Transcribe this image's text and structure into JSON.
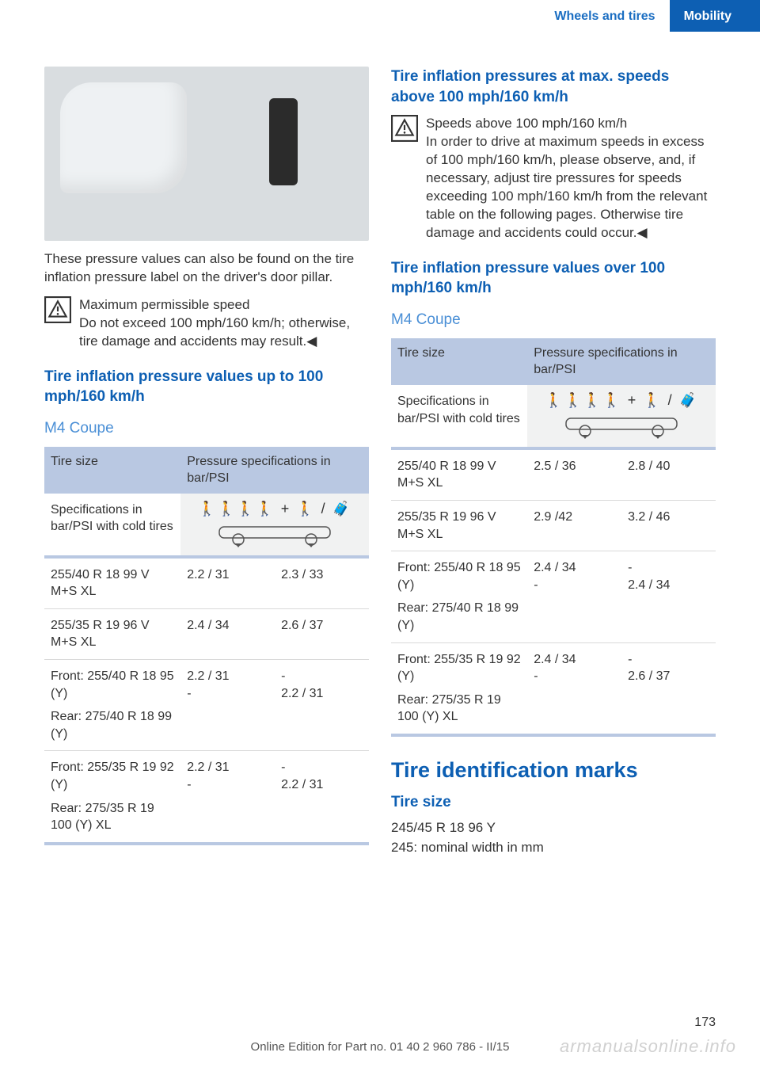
{
  "header": {
    "section": "Wheels and tires",
    "chapter": "Mobility"
  },
  "left": {
    "p1": "These pressure values can also be found on the tire inflation pressure label on the driver's door pillar.",
    "warn_title": "Maximum permissible speed",
    "warn_body": "Do not exceed 100 mph/160 km/h; otherwise, tire damage and accidents may result.◀",
    "h_upto": "Tire inflation pressure values up to 100 mph/160 km/h",
    "h_m4": "M4 Coupe",
    "table": {
      "th1": "Tire size",
      "th2": "Pressure specifications in bar/PSI",
      "spec_label": "Specifications in bar/PSI with cold tires",
      "rows": [
        {
          "size": "255/40 R 18 99 V M+S XL",
          "c1": "2.2 / 31",
          "c2": "2.3 / 33"
        },
        {
          "size": "255/35 R 19 96 V M+S XL",
          "c1": "2.4 / 34",
          "c2": "2.6 / 37"
        },
        {
          "size": "Front: 255/40 R 18 95 (Y)\nRear: 275/40 R 18 99 (Y)",
          "c1": "2.2 / 31\n-",
          "c2": "-\n2.2 / 31"
        },
        {
          "size": "Front: 255/35 R 19 92 (Y)\nRear: 275/35 R 19 100 (Y) XL",
          "c1": "2.2 / 31\n-",
          "c2": "-\n2.2 / 31"
        }
      ]
    }
  },
  "right": {
    "h_max": "Tire inflation pressures at max. speeds above 100 mph/160 km/h",
    "warn_title": "Speeds above 100 mph/160 km/h",
    "warn_body": "In order to drive at maximum speeds in excess of 100 mph/160 km/h, please observe, and, if necessary, adjust tire pressures for speeds exceeding 100 mph/160 km/h from the relevant table on the following pages. Otherwise tire damage and accidents could occur.◀",
    "h_over": "Tire inflation pressure values over 100 mph/160 km/h",
    "h_m4": "M4 Coupe",
    "table": {
      "th1": "Tire size",
      "th2": "Pressure specifications in bar/PSI",
      "spec_label": "Specifications in bar/PSI with cold tires",
      "rows": [
        {
          "size": "255/40 R 18 99 V M+S XL",
          "c1": "2.5 / 36",
          "c2": "2.8 / 40"
        },
        {
          "size": "255/35 R 19 96 V M+S XL",
          "c1": "2.9 /42",
          "c2": "3.2 / 46"
        },
        {
          "size": "Front: 255/40 R 18 95 (Y)\nRear: 275/40 R 18 99 (Y)",
          "c1": "2.4 / 34\n-",
          "c2": "-\n2.4 / 34"
        },
        {
          "size": "Front: 255/35 R 19 92 (Y)\nRear: 275/35 R 19 100 (Y) XL",
          "c1": "2.4 / 34\n-",
          "c2": "-\n2.6 / 37"
        }
      ]
    },
    "h_marks": "Tire identification marks",
    "h_size": "Tire size",
    "size_ex": "245/45 R 18 96 Y",
    "size_note": "245: nominal width in mm"
  },
  "footer": {
    "page": "173",
    "line": "Online Edition for Part no. 01 40 2 960 786 - II/15",
    "watermark": "armanualsonline.info"
  }
}
